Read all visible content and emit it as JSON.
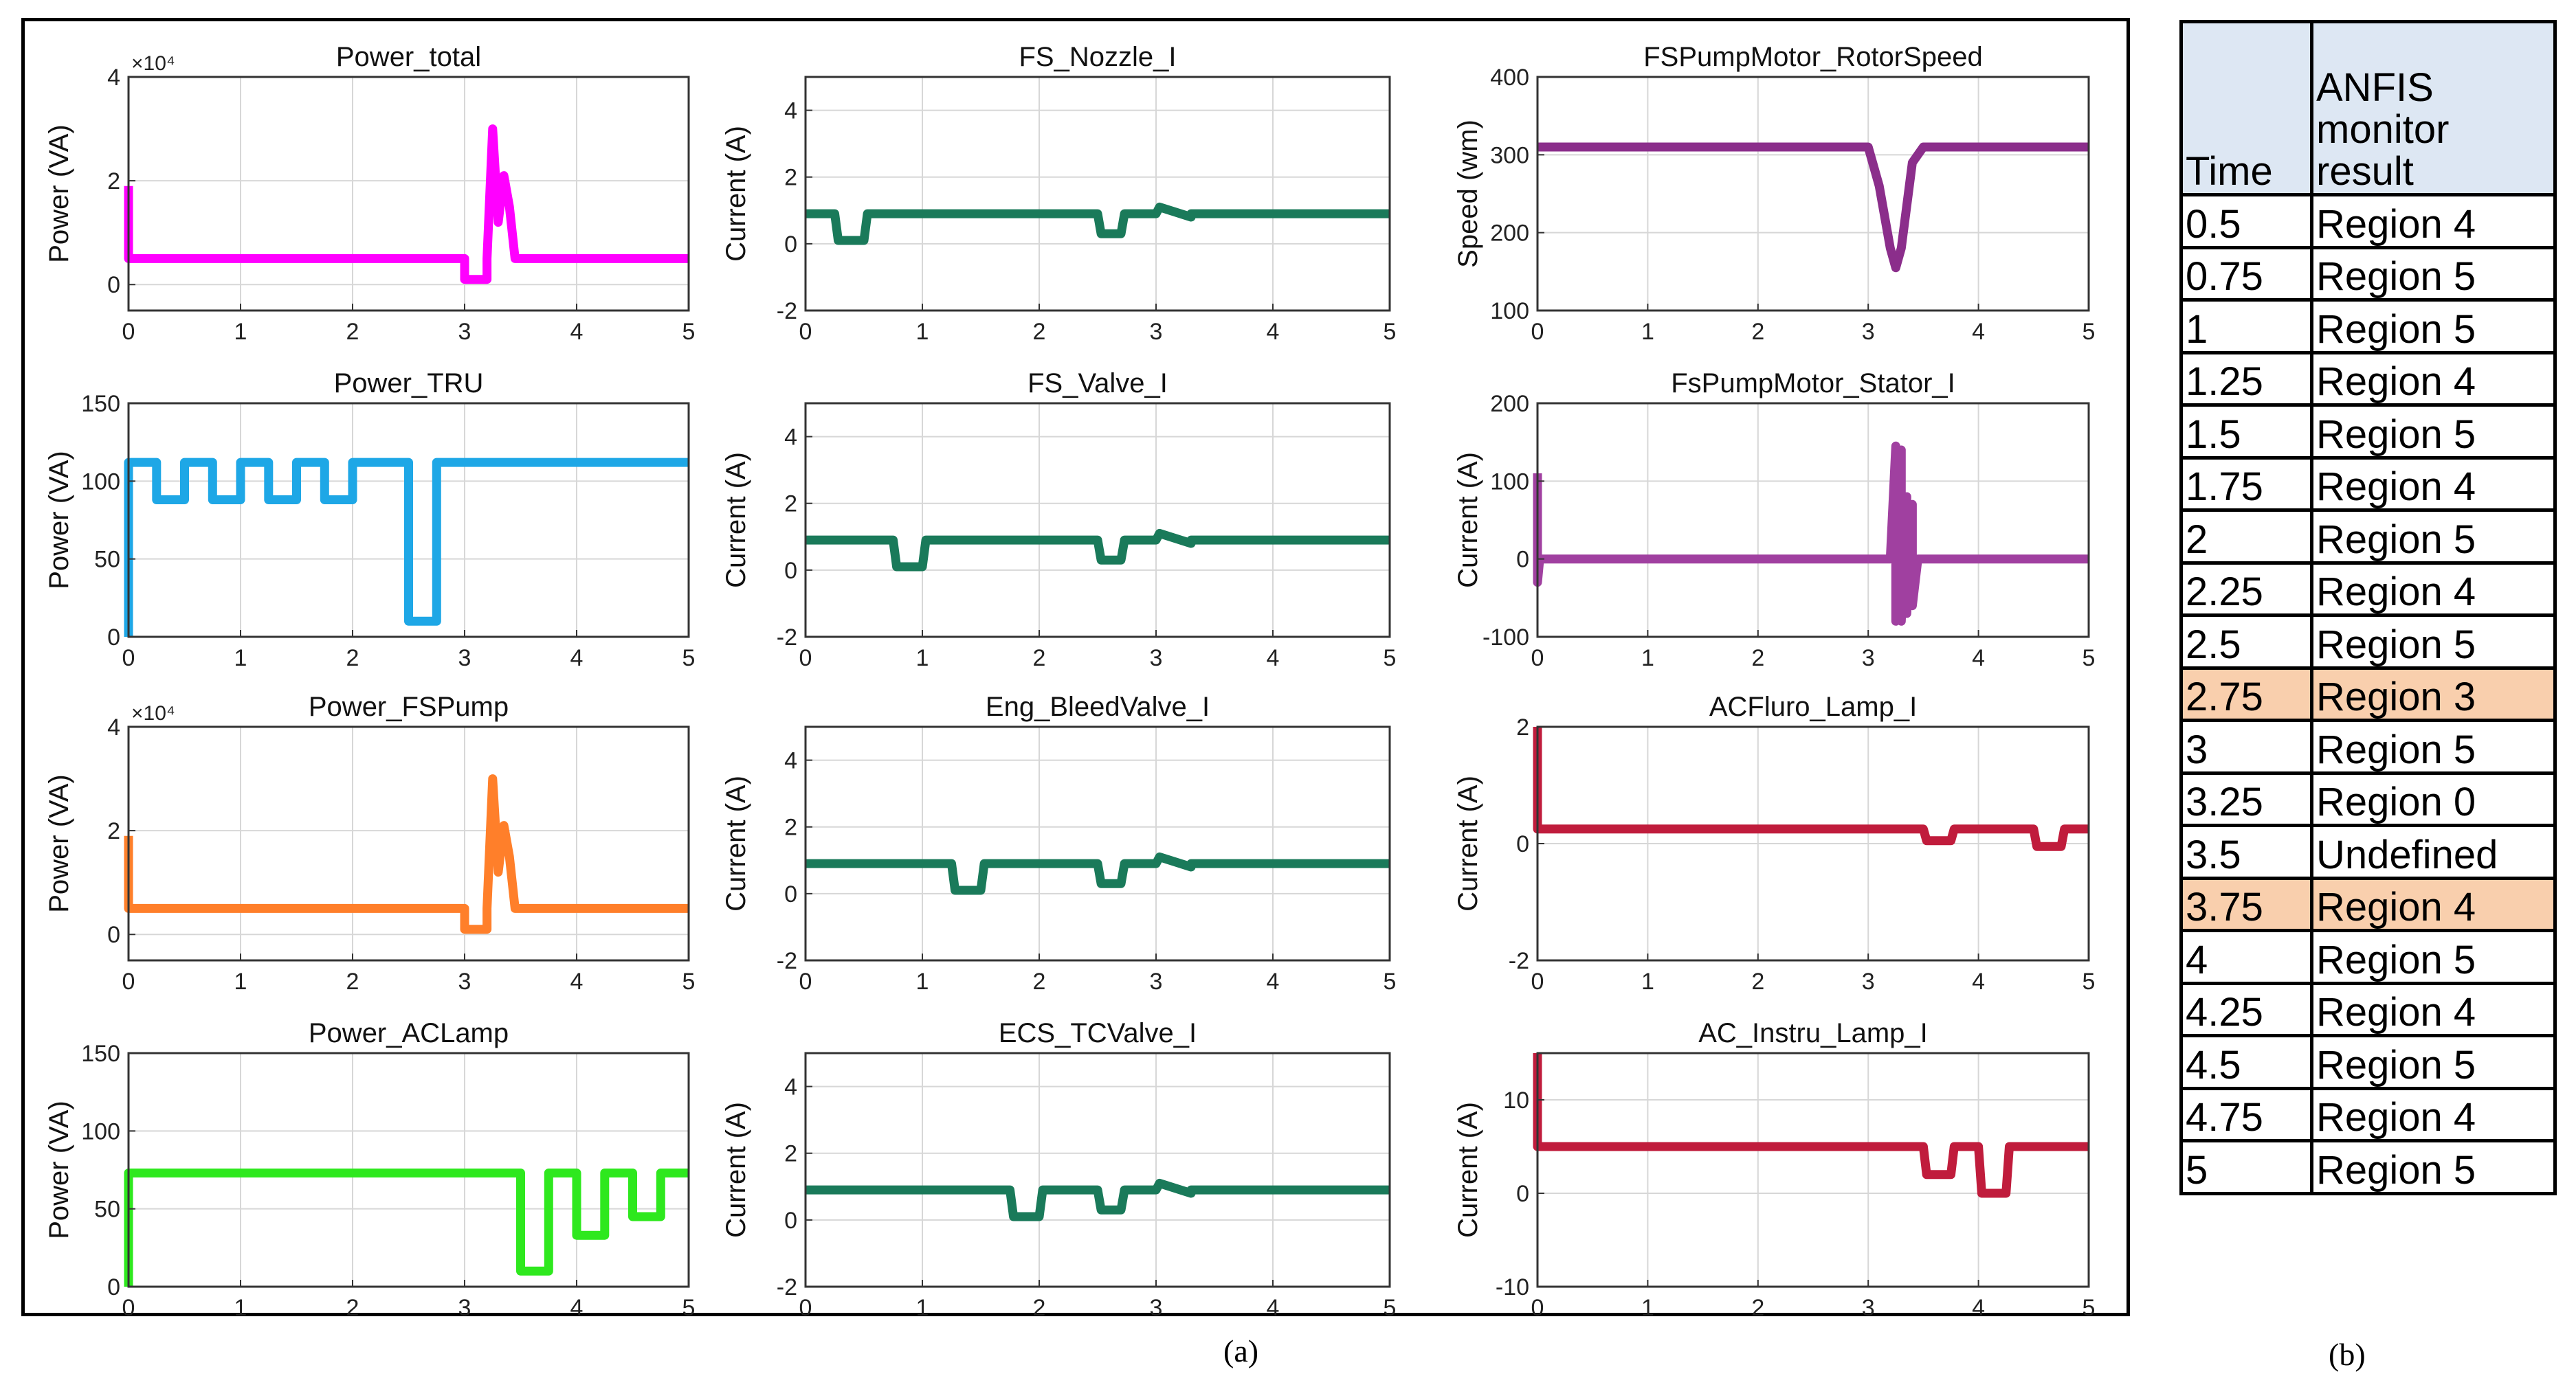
{
  "figure": {
    "panel_a_label": "(a)",
    "panel_b_label": "(b)"
  },
  "chart_data": [
    {
      "type": "line",
      "title": "Power_total",
      "ylabel": "Power (VA)",
      "xlabel": "",
      "xlim": [
        0,
        5
      ],
      "ylim": [
        -0.5,
        4
      ],
      "y_exponent": "×10⁴",
      "xticks": [
        "0",
        "1",
        "2",
        "3",
        "4",
        "5"
      ],
      "yticks": [
        "0",
        "2",
        "4"
      ],
      "ytick_values": [
        0,
        2,
        4
      ],
      "grid": true,
      "color": "#ff00ff",
      "series": [
        {
          "name": "Power_total",
          "x": [
            0,
            0,
            0.02,
            3.0,
            3.0,
            3.2,
            3.2,
            3.25,
            3.3,
            3.35,
            3.4,
            3.45,
            3.5,
            3.5,
            5
          ],
          "y": [
            1.9,
            0.5,
            0.5,
            0.5,
            0.1,
            0.1,
            0.5,
            3.0,
            1.2,
            2.1,
            1.5,
            0.5,
            0.5,
            0.5,
            0.5
          ]
        }
      ]
    },
    {
      "type": "line",
      "title": "FS_Nozzle_I",
      "ylabel": "Current (A)",
      "xlabel": "",
      "xlim": [
        0,
        5
      ],
      "ylim": [
        -2,
        5
      ],
      "xticks": [
        "0",
        "1",
        "2",
        "3",
        "4",
        "5"
      ],
      "yticks": [
        "-2",
        "0",
        "2",
        "4"
      ],
      "ytick_values": [
        -2,
        0,
        2,
        4
      ],
      "grid": true,
      "color": "#1a7a5a",
      "series": [
        {
          "name": "FS_Nozzle_I",
          "x": [
            0,
            0.25,
            0.28,
            0.5,
            0.53,
            2.5,
            2.53,
            2.7,
            2.73,
            3.0,
            3.03,
            3.3,
            3.3,
            5
          ],
          "y": [
            0.9,
            0.9,
            0.1,
            0.1,
            0.9,
            0.9,
            0.3,
            0.3,
            0.9,
            0.9,
            1.1,
            0.8,
            0.9,
            0.9
          ]
        }
      ]
    },
    {
      "type": "line",
      "title": "FSPumpMotor_RotorSpeed",
      "ylabel": "Speed (wm)",
      "xlabel": "",
      "xlim": [
        0,
        5
      ],
      "ylim": [
        100,
        400
      ],
      "xticks": [
        "0",
        "1",
        "2",
        "3",
        "4",
        "5"
      ],
      "yticks": [
        "100",
        "200",
        "300",
        "400"
      ],
      "ytick_values": [
        100,
        200,
        300,
        400
      ],
      "grid": true,
      "color": "#8b2e8b",
      "series": [
        {
          "name": "FSPumpMotor_RotorSpeed",
          "x": [
            0,
            3.0,
            3.1,
            3.2,
            3.25,
            3.3,
            3.4,
            3.5,
            5
          ],
          "y": [
            310,
            310,
            260,
            180,
            155,
            180,
            290,
            310,
            310
          ]
        }
      ]
    },
    {
      "type": "line",
      "title": "Power_TRU",
      "ylabel": "Power (VA)",
      "xlabel": "",
      "xlim": [
        0,
        5
      ],
      "ylim": [
        0,
        150
      ],
      "xticks": [
        "0",
        "1",
        "2",
        "3",
        "4",
        "5"
      ],
      "yticks": [
        "0",
        "50",
        "100",
        "150"
      ],
      "ytick_values": [
        0,
        50,
        100,
        150
      ],
      "grid": true,
      "color": "#1ea7e6",
      "series": [
        {
          "name": "Power_TRU",
          "x": [
            0,
            0,
            0.25,
            0.25,
            0.5,
            0.5,
            0.75,
            0.75,
            1.0,
            1.0,
            1.25,
            1.25,
            1.5,
            1.5,
            1.75,
            1.75,
            2.0,
            2.0,
            2.5,
            2.5,
            2.75,
            2.75,
            5
          ],
          "y": [
            0,
            112,
            112,
            88,
            88,
            112,
            112,
            88,
            88,
            112,
            112,
            88,
            88,
            112,
            112,
            88,
            88,
            112,
            112,
            10,
            10,
            112,
            112
          ]
        }
      ]
    },
    {
      "type": "line",
      "title": "FS_Valve_I",
      "ylabel": "Current (A)",
      "xlabel": "",
      "xlim": [
        0,
        5
      ],
      "ylim": [
        -2,
        5
      ],
      "xticks": [
        "0",
        "1",
        "2",
        "3",
        "4",
        "5"
      ],
      "yticks": [
        "-2",
        "0",
        "2",
        "4"
      ],
      "ytick_values": [
        -2,
        0,
        2,
        4
      ],
      "grid": true,
      "color": "#1a7a5a",
      "series": [
        {
          "name": "FS_Valve_I",
          "x": [
            0,
            0.75,
            0.78,
            1.0,
            1.03,
            2.5,
            2.53,
            2.7,
            2.73,
            3.0,
            3.03,
            3.3,
            3.3,
            5
          ],
          "y": [
            0.9,
            0.9,
            0.1,
            0.1,
            0.9,
            0.9,
            0.3,
            0.3,
            0.9,
            0.9,
            1.1,
            0.8,
            0.9,
            0.9
          ]
        }
      ]
    },
    {
      "type": "line",
      "title": "FsPumpMotor_Stator_I",
      "ylabel": "Current (A)",
      "xlabel": "",
      "xlim": [
        0,
        5
      ],
      "ylim": [
        -100,
        200
      ],
      "xticks": [
        "0",
        "1",
        "2",
        "3",
        "4",
        "5"
      ],
      "yticks": [
        "-100",
        "0",
        "100",
        "200"
      ],
      "ytick_values": [
        -100,
        0,
        100,
        200
      ],
      "grid": true,
      "color": "#a040a0",
      "series": [
        {
          "name": "FsPumpMotor_Stator_I",
          "x": [
            0,
            0,
            0.02,
            3.2,
            3.25,
            3.25,
            3.3,
            3.3,
            3.35,
            3.35,
            3.4,
            3.4,
            3.45,
            5
          ],
          "y": [
            110,
            -30,
            0,
            0,
            145,
            -80,
            140,
            -80,
            80,
            -70,
            70,
            -60,
            0,
            0
          ]
        }
      ]
    },
    {
      "type": "line",
      "title": "Power_FSPump",
      "ylabel": "Power (VA)",
      "xlabel": "",
      "xlim": [
        0,
        5
      ],
      "ylim": [
        -0.5,
        4
      ],
      "y_exponent": "×10⁴",
      "xticks": [
        "0",
        "1",
        "2",
        "3",
        "4",
        "5"
      ],
      "yticks": [
        "0",
        "2",
        "4"
      ],
      "ytick_values": [
        0,
        2,
        4
      ],
      "grid": true,
      "color": "#ff7f2a",
      "series": [
        {
          "name": "Power_FSPump",
          "x": [
            0,
            0,
            0.02,
            3.0,
            3.0,
            3.2,
            3.2,
            3.25,
            3.3,
            3.35,
            3.4,
            3.45,
            3.5,
            5
          ],
          "y": [
            1.9,
            0.5,
            0.5,
            0.5,
            0.1,
            0.1,
            0.5,
            3.0,
            1.2,
            2.1,
            1.5,
            0.5,
            0.5,
            0.5
          ]
        }
      ]
    },
    {
      "type": "line",
      "title": "Eng_BleedValve_I",
      "ylabel": "Current (A)",
      "xlabel": "",
      "xlim": [
        0,
        5
      ],
      "ylim": [
        -2,
        5
      ],
      "xticks": [
        "0",
        "1",
        "2",
        "3",
        "4",
        "5"
      ],
      "yticks": [
        "-2",
        "0",
        "2",
        "4"
      ],
      "ytick_values": [
        -2,
        0,
        2,
        4
      ],
      "grid": true,
      "color": "#1a7a5a",
      "series": [
        {
          "name": "Eng_BleedValve_I",
          "x": [
            0,
            1.25,
            1.28,
            1.5,
            1.53,
            2.5,
            2.53,
            2.7,
            2.73,
            3.0,
            3.03,
            3.3,
            3.3,
            5
          ],
          "y": [
            0.9,
            0.9,
            0.1,
            0.1,
            0.9,
            0.9,
            0.3,
            0.3,
            0.9,
            0.9,
            1.1,
            0.8,
            0.9,
            0.9
          ]
        }
      ]
    },
    {
      "type": "line",
      "title": "ACFluro_Lamp_I",
      "ylabel": "Current (A)",
      "xlabel": "",
      "xlim": [
        0,
        5
      ],
      "ylim": [
        -2,
        2
      ],
      "xticks": [
        "0",
        "1",
        "2",
        "3",
        "4",
        "5"
      ],
      "yticks": [
        "-2",
        "0",
        "2"
      ],
      "ytick_values": [
        -2,
        0,
        2
      ],
      "grid": true,
      "color": "#c01c3c",
      "series": [
        {
          "name": "ACFluro_Lamp_I",
          "x": [
            0,
            0,
            0.02,
            3.5,
            3.53,
            3.75,
            3.78,
            4.5,
            4.53,
            4.75,
            4.78,
            5
          ],
          "y": [
            2,
            0.25,
            0.25,
            0.25,
            0.05,
            0.05,
            0.25,
            0.25,
            -0.05,
            -0.05,
            0.25,
            0.25
          ]
        }
      ]
    },
    {
      "type": "line",
      "title": "Power_ACLamp",
      "ylabel": "Power (VA)",
      "xlabel": "",
      "xlim": [
        0,
        5
      ],
      "ylim": [
        0,
        150
      ],
      "xticks": [
        "0",
        "1",
        "2",
        "3",
        "4",
        "5"
      ],
      "yticks": [
        "0",
        "50",
        "100",
        "150"
      ],
      "ytick_values": [
        0,
        50,
        100,
        150
      ],
      "grid": true,
      "color": "#2ee81e",
      "series": [
        {
          "name": "Power_ACLamp",
          "x": [
            0,
            0,
            3.5,
            3.5,
            3.75,
            3.75,
            4.0,
            4.0,
            4.25,
            4.25,
            4.5,
            4.5,
            4.75,
            4.75,
            5
          ],
          "y": [
            0,
            73,
            73,
            10,
            10,
            73,
            73,
            33,
            33,
            73,
            73,
            45,
            45,
            73,
            73
          ]
        }
      ]
    },
    {
      "type": "line",
      "title": "ECS_TCValve_I",
      "ylabel": "Current (A)",
      "xlabel": "",
      "xlim": [
        0,
        5
      ],
      "ylim": [
        -2,
        5
      ],
      "xticks": [
        "0",
        "1",
        "2",
        "3",
        "4",
        "5"
      ],
      "yticks": [
        "-2",
        "0",
        "2",
        "4"
      ],
      "ytick_values": [
        -2,
        0,
        2,
        4
      ],
      "grid": true,
      "color": "#1a7a5a",
      "series": [
        {
          "name": "ECS_TCValve_I",
          "x": [
            0,
            1.75,
            1.78,
            2.0,
            2.03,
            2.5,
            2.53,
            2.7,
            2.73,
            3.0,
            3.03,
            3.3,
            3.3,
            5
          ],
          "y": [
            0.9,
            0.9,
            0.1,
            0.1,
            0.9,
            0.9,
            0.3,
            0.3,
            0.9,
            0.9,
            1.1,
            0.8,
            0.9,
            0.9
          ]
        }
      ]
    },
    {
      "type": "line",
      "title": "AC_Instru_Lamp_I",
      "ylabel": "Current (A)",
      "xlabel": "",
      "xlim": [
        0,
        5
      ],
      "ylim": [
        -10,
        15
      ],
      "xticks": [
        "0",
        "1",
        "2",
        "3",
        "4",
        "5"
      ],
      "yticks": [
        "-10",
        "0",
        "10"
      ],
      "ytick_values": [
        -10,
        0,
        10
      ],
      "grid": true,
      "color": "#c01c3c",
      "series": [
        {
          "name": "AC_Instru_Lamp_I",
          "x": [
            0,
            0,
            0.02,
            3.5,
            3.53,
            3.75,
            3.78,
            4.0,
            4.03,
            4.25,
            4.28,
            5
          ],
          "y": [
            15,
            5,
            5,
            5,
            2,
            2,
            5,
            5,
            0,
            0,
            5,
            5
          ]
        }
      ]
    }
  ],
  "table": {
    "header": {
      "time": "Time",
      "result": "ANFIS\nmonitor\nresult"
    },
    "rows": [
      {
        "time": "0.5",
        "result": "Region 4",
        "highlight": false
      },
      {
        "time": "0.75",
        "result": "Region 5",
        "highlight": false
      },
      {
        "time": "1",
        "result": "Region 5",
        "highlight": false
      },
      {
        "time": "1.25",
        "result": "Region 4",
        "highlight": false
      },
      {
        "time": "1.5",
        "result": "Region 5",
        "highlight": false
      },
      {
        "time": "1.75",
        "result": "Region 4",
        "highlight": false
      },
      {
        "time": "2",
        "result": "Region 5",
        "highlight": false
      },
      {
        "time": "2.25",
        "result": "Region 4",
        "highlight": false
      },
      {
        "time": "2.5",
        "result": "Region 5",
        "highlight": false
      },
      {
        "time": "2.75",
        "result": "Region 3",
        "highlight": true
      },
      {
        "time": "3",
        "result": "Region 5",
        "highlight": false
      },
      {
        "time": "3.25",
        "result": "Region 0",
        "highlight": false
      },
      {
        "time": "3.5",
        "result": "Undefined",
        "highlight": false
      },
      {
        "time": "3.75",
        "result": "Region 4",
        "highlight": true
      },
      {
        "time": "4",
        "result": "Region 5",
        "highlight": false
      },
      {
        "time": "4.25",
        "result": "Region 4",
        "highlight": false
      },
      {
        "time": "4.5",
        "result": "Region 5",
        "highlight": false
      },
      {
        "time": "4.75",
        "result": "Region 4",
        "highlight": false
      },
      {
        "time": "5",
        "result": "Region 5",
        "highlight": false
      }
    ]
  }
}
